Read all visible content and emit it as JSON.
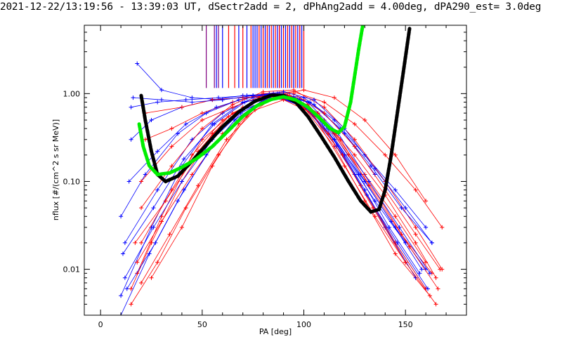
{
  "chart_data": {
    "type": "line",
    "title": "2021-12-22/13:19:56 - 13:39:03 UT, dSectr2add = 2, dPhAng2add = 4.00deg, dPA290_est=   3.0deg",
    "xlabel": "PA [deg]",
    "ylabel": "nflux [#/(cm^2 s sr MeV)]",
    "xlim": [
      -8,
      180
    ],
    "ylim": [
      0.003,
      6
    ],
    "yscale": "log",
    "x_ticks": [
      0,
      50,
      100,
      150
    ],
    "x_tick_labels": [
      "0",
      "50",
      "100",
      "150"
    ],
    "y_ticks": [
      0.01,
      0.1,
      1.0
    ],
    "y_tick_labels": [
      "0.01",
      "0.10",
      "1.00"
    ],
    "grid": false,
    "colors": {
      "red": "#ff0000",
      "blue": "#0000ff",
      "purple": "#800080",
      "green": "#00ee00",
      "black": "#000000"
    },
    "red_spectra": [
      [
        [
          18,
          0.009
        ],
        [
          30,
          0.04
        ],
        [
          45,
          0.2
        ],
        [
          60,
          0.5
        ],
        [
          75,
          0.8
        ],
        [
          85,
          0.95
        ],
        [
          95,
          0.9
        ],
        [
          110,
          0.5
        ],
        [
          125,
          0.2
        ],
        [
          140,
          0.07
        ],
        [
          155,
          0.02
        ],
        [
          165,
          0.008
        ]
      ],
      [
        [
          20,
          0.02
        ],
        [
          35,
          0.08
        ],
        [
          50,
          0.3
        ],
        [
          65,
          0.6
        ],
        [
          80,
          0.9
        ],
        [
          90,
          1.0
        ],
        [
          100,
          0.85
        ],
        [
          115,
          0.35
        ],
        [
          130,
          0.12
        ],
        [
          145,
          0.04
        ],
        [
          160,
          0.012
        ]
      ],
      [
        [
          15,
          0.006
        ],
        [
          25,
          0.02
        ],
        [
          40,
          0.1
        ],
        [
          55,
          0.35
        ],
        [
          70,
          0.7
        ],
        [
          85,
          1.0
        ],
        [
          100,
          0.7
        ],
        [
          115,
          0.25
        ],
        [
          130,
          0.06
        ],
        [
          145,
          0.015
        ],
        [
          162,
          0.005
        ]
      ],
      [
        [
          20,
          0.05
        ],
        [
          35,
          0.15
        ],
        [
          50,
          0.4
        ],
        [
          65,
          0.75
        ],
        [
          80,
          1.05
        ],
        [
          95,
          1.1
        ],
        [
          110,
          0.7
        ],
        [
          125,
          0.3
        ],
        [
          140,
          0.1
        ],
        [
          155,
          0.03
        ],
        [
          168,
          0.01
        ]
      ],
      [
        [
          22,
          0.3
        ],
        [
          35,
          0.4
        ],
        [
          50,
          0.6
        ],
        [
          65,
          0.8
        ],
        [
          80,
          1.0
        ],
        [
          95,
          1.05
        ],
        [
          110,
          0.8
        ],
        [
          125,
          0.45
        ],
        [
          140,
          0.2
        ],
        [
          155,
          0.08
        ],
        [
          168,
          0.03
        ]
      ],
      [
        [
          18,
          0.012
        ],
        [
          30,
          0.035
        ],
        [
          45,
          0.12
        ],
        [
          60,
          0.35
        ],
        [
          75,
          0.7
        ],
        [
          88,
          0.9
        ],
        [
          102,
          0.75
        ],
        [
          118,
          0.3
        ],
        [
          132,
          0.09
        ],
        [
          148,
          0.025
        ],
        [
          163,
          0.009
        ]
      ],
      [
        [
          25,
          0.008
        ],
        [
          40,
          0.03
        ],
        [
          55,
          0.15
        ],
        [
          68,
          0.45
        ],
        [
          80,
          0.85
        ],
        [
          92,
          0.95
        ],
        [
          105,
          0.55
        ],
        [
          120,
          0.15
        ],
        [
          135,
          0.04
        ],
        [
          150,
          0.012
        ]
      ],
      [
        [
          20,
          0.1
        ],
        [
          35,
          0.25
        ],
        [
          50,
          0.5
        ],
        [
          65,
          0.7
        ],
        [
          80,
          0.95
        ],
        [
          95,
          1.0
        ],
        [
          110,
          0.6
        ],
        [
          125,
          0.25
        ],
        [
          140,
          0.08
        ],
        [
          155,
          0.025
        ],
        [
          167,
          0.01
        ]
      ],
      [
        [
          15,
          0.004
        ],
        [
          28,
          0.012
        ],
        [
          42,
          0.05
        ],
        [
          58,
          0.2
        ],
        [
          72,
          0.55
        ],
        [
          85,
          0.9
        ],
        [
          98,
          0.8
        ],
        [
          112,
          0.35
        ],
        [
          128,
          0.09
        ],
        [
          145,
          0.02
        ],
        [
          160,
          0.006
        ]
      ],
      [
        [
          22,
          0.6
        ],
        [
          40,
          0.7
        ],
        [
          55,
          0.85
        ],
        [
          70,
          0.9
        ],
        [
          85,
          0.95
        ],
        [
          100,
          1.1
        ],
        [
          115,
          0.9
        ],
        [
          130,
          0.5
        ],
        [
          145,
          0.2
        ],
        [
          160,
          0.06
        ]
      ],
      [
        [
          17,
          0.02
        ],
        [
          32,
          0.06
        ],
        [
          48,
          0.22
        ],
        [
          63,
          0.55
        ],
        [
          78,
          0.9
        ],
        [
          93,
          0.95
        ],
        [
          107,
          0.6
        ],
        [
          122,
          0.2
        ],
        [
          138,
          0.06
        ],
        [
          152,
          0.018
        ],
        [
          166,
          0.006
        ]
      ],
      [
        [
          20,
          0.007
        ],
        [
          34,
          0.025
        ],
        [
          48,
          0.09
        ],
        [
          62,
          0.3
        ],
        [
          76,
          0.65
        ],
        [
          90,
          0.85
        ],
        [
          104,
          0.6
        ],
        [
          119,
          0.2
        ],
        [
          134,
          0.05
        ],
        [
          150,
          0.012
        ],
        [
          165,
          0.004
        ]
      ]
    ],
    "blue_spectra": [
      [
        [
          10,
          0.005
        ],
        [
          25,
          0.03
        ],
        [
          40,
          0.15
        ],
        [
          55,
          0.45
        ],
        [
          70,
          0.8
        ],
        [
          85,
          0.95
        ],
        [
          100,
          0.7
        ],
        [
          115,
          0.3
        ],
        [
          130,
          0.1
        ],
        [
          145,
          0.03
        ],
        [
          160,
          0.01
        ]
      ],
      [
        [
          12,
          0.02
        ],
        [
          28,
          0.08
        ],
        [
          45,
          0.3
        ],
        [
          60,
          0.6
        ],
        [
          75,
          0.9
        ],
        [
          90,
          1.0
        ],
        [
          105,
          0.6
        ],
        [
          120,
          0.2
        ],
        [
          135,
          0.06
        ],
        [
          150,
          0.02
        ]
      ],
      [
        [
          15,
          0.3
        ],
        [
          25,
          0.5
        ],
        [
          40,
          0.7
        ],
        [
          55,
          0.85
        ],
        [
          70,
          0.95
        ],
        [
          85,
          1.0
        ],
        [
          100,
          0.9
        ],
        [
          115,
          0.5
        ],
        [
          130,
          0.2
        ],
        [
          145,
          0.08
        ],
        [
          160,
          0.03
        ]
      ],
      [
        [
          10,
          0.04
        ],
        [
          22,
          0.12
        ],
        [
          38,
          0.35
        ],
        [
          52,
          0.6
        ],
        [
          68,
          0.85
        ],
        [
          83,
          1.0
        ],
        [
          98,
          0.85
        ],
        [
          113,
          0.4
        ],
        [
          128,
          0.12
        ],
        [
          143,
          0.035
        ],
        [
          158,
          0.01
        ]
      ],
      [
        [
          18,
          2.2
        ],
        [
          30,
          1.1
        ],
        [
          45,
          0.9
        ],
        [
          60,
          0.85
        ],
        [
          75,
          0.95
        ],
        [
          90,
          1.0
        ],
        [
          105,
          0.75
        ],
        [
          120,
          0.35
        ],
        [
          135,
          0.12
        ]
      ],
      [
        [
          12,
          0.008
        ],
        [
          26,
          0.03
        ],
        [
          40,
          0.1
        ],
        [
          55,
          0.3
        ],
        [
          70,
          0.65
        ],
        [
          85,
          0.9
        ],
        [
          100,
          0.75
        ],
        [
          115,
          0.3
        ],
        [
          130,
          0.08
        ],
        [
          145,
          0.02
        ],
        [
          160,
          0.006
        ]
      ],
      [
        [
          15,
          0.7
        ],
        [
          28,
          0.8
        ],
        [
          42,
          0.85
        ],
        [
          58,
          0.9
        ],
        [
          72,
          0.95
        ],
        [
          88,
          1.0
        ],
        [
          103,
          0.8
        ],
        [
          118,
          0.4
        ],
        [
          133,
          0.15
        ],
        [
          148,
          0.05
        ],
        [
          163,
          0.02
        ]
      ],
      [
        [
          10,
          0.003
        ],
        [
          24,
          0.015
        ],
        [
          38,
          0.06
        ],
        [
          52,
          0.2
        ],
        [
          66,
          0.5
        ],
        [
          80,
          0.85
        ],
        [
          95,
          0.9
        ],
        [
          110,
          0.45
        ],
        [
          125,
          0.12
        ],
        [
          140,
          0.03
        ],
        [
          155,
          0.008
        ]
      ],
      [
        [
          14,
          0.1
        ],
        [
          28,
          0.22
        ],
        [
          42,
          0.45
        ],
        [
          57,
          0.7
        ],
        [
          72,
          0.9
        ],
        [
          87,
          1.0
        ],
        [
          102,
          0.8
        ],
        [
          117,
          0.35
        ],
        [
          132,
          0.1
        ],
        [
          147,
          0.03
        ],
        [
          162,
          0.009
        ]
      ],
      [
        [
          11,
          0.015
        ],
        [
          26,
          0.05
        ],
        [
          41,
          0.18
        ],
        [
          56,
          0.45
        ],
        [
          71,
          0.8
        ],
        [
          86,
          0.95
        ],
        [
          101,
          0.7
        ],
        [
          116,
          0.25
        ],
        [
          131,
          0.07
        ],
        [
          146,
          0.02
        ],
        [
          161,
          0.006
        ]
      ],
      [
        [
          16,
          0.9
        ],
        [
          30,
          0.85
        ],
        [
          45,
          0.8
        ],
        [
          60,
          0.85
        ],
        [
          75,
          0.95
        ],
        [
          90,
          1.05
        ],
        [
          105,
          0.85
        ],
        [
          120,
          0.4
        ],
        [
          135,
          0.14
        ],
        [
          150,
          0.05
        ],
        [
          163,
          0.02
        ]
      ],
      [
        [
          13,
          0.006
        ],
        [
          27,
          0.02
        ],
        [
          41,
          0.08
        ],
        [
          55,
          0.25
        ],
        [
          69,
          0.6
        ],
        [
          83,
          0.9
        ],
        [
          97,
          0.85
        ],
        [
          112,
          0.4
        ],
        [
          127,
          0.12
        ],
        [
          142,
          0.03
        ],
        [
          157,
          0.009
        ]
      ]
    ],
    "vertical_lines": {
      "purple_x": [
        52,
        56,
        58,
        88,
        95,
        98
      ],
      "red_x": [
        63,
        66,
        70,
        74,
        78,
        80,
        82,
        84,
        86,
        88,
        90,
        92,
        94,
        96,
        98,
        100
      ],
      "blue_x": [
        57,
        60,
        68,
        72,
        75,
        76,
        77,
        79,
        81,
        83,
        85,
        87,
        89,
        91,
        93,
        95,
        97,
        99
      ]
    },
    "black_fit": [
      [
        20,
        0.95
      ],
      [
        22,
        0.5
      ],
      [
        25,
        0.22
      ],
      [
        28,
        0.12
      ],
      [
        32,
        0.1
      ],
      [
        38,
        0.115
      ],
      [
        45,
        0.17
      ],
      [
        52,
        0.26
      ],
      [
        60,
        0.42
      ],
      [
        68,
        0.62
      ],
      [
        76,
        0.82
      ],
      [
        84,
        0.96
      ],
      [
        90,
        0.95
      ],
      [
        96,
        0.8
      ],
      [
        102,
        0.55
      ],
      [
        108,
        0.34
      ],
      [
        115,
        0.19
      ],
      [
        122,
        0.1
      ],
      [
        128,
        0.06
      ],
      [
        133,
        0.045
      ],
      [
        137,
        0.048
      ],
      [
        140,
        0.08
      ],
      [
        143,
        0.2
      ],
      [
        146,
        0.6
      ],
      [
        149,
        1.8
      ],
      [
        152,
        5.5
      ]
    ],
    "green_fit": [
      [
        19,
        0.45
      ],
      [
        21,
        0.25
      ],
      [
        24,
        0.15
      ],
      [
        28,
        0.12
      ],
      [
        34,
        0.125
      ],
      [
        40,
        0.145
      ],
      [
        47,
        0.18
      ],
      [
        55,
        0.25
      ],
      [
        63,
        0.38
      ],
      [
        70,
        0.55
      ],
      [
        77,
        0.73
      ],
      [
        84,
        0.86
      ],
      [
        90,
        0.92
      ],
      [
        96,
        0.85
      ],
      [
        102,
        0.7
      ],
      [
        108,
        0.52
      ],
      [
        113,
        0.4
      ],
      [
        117,
        0.36
      ],
      [
        120,
        0.42
      ],
      [
        123,
        0.8
      ],
      [
        125,
        1.6
      ],
      [
        127,
        3.2
      ],
      [
        129,
        6.0
      ]
    ]
  }
}
